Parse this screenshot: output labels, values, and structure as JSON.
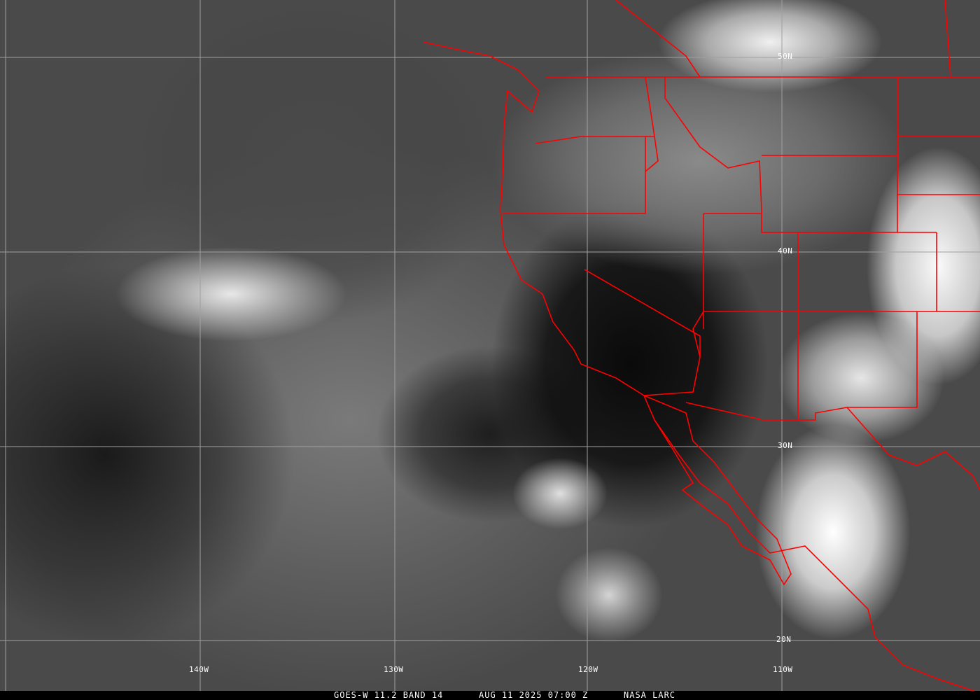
{
  "image": {
    "type": "satellite infrared image",
    "border_color": "#ff0000",
    "grid_color": "#a0a0a0"
  },
  "grid_labels": {
    "latitudes": [
      "50N",
      "40N",
      "30N",
      "20N"
    ],
    "longitudes": [
      "140W",
      "130W",
      "120W",
      "110W"
    ]
  },
  "caption": {
    "product": "GOES-W 11.2 BAND 14",
    "datetime": "AUG 11 2025 07:00 Z",
    "source": "NASA LARC"
  }
}
